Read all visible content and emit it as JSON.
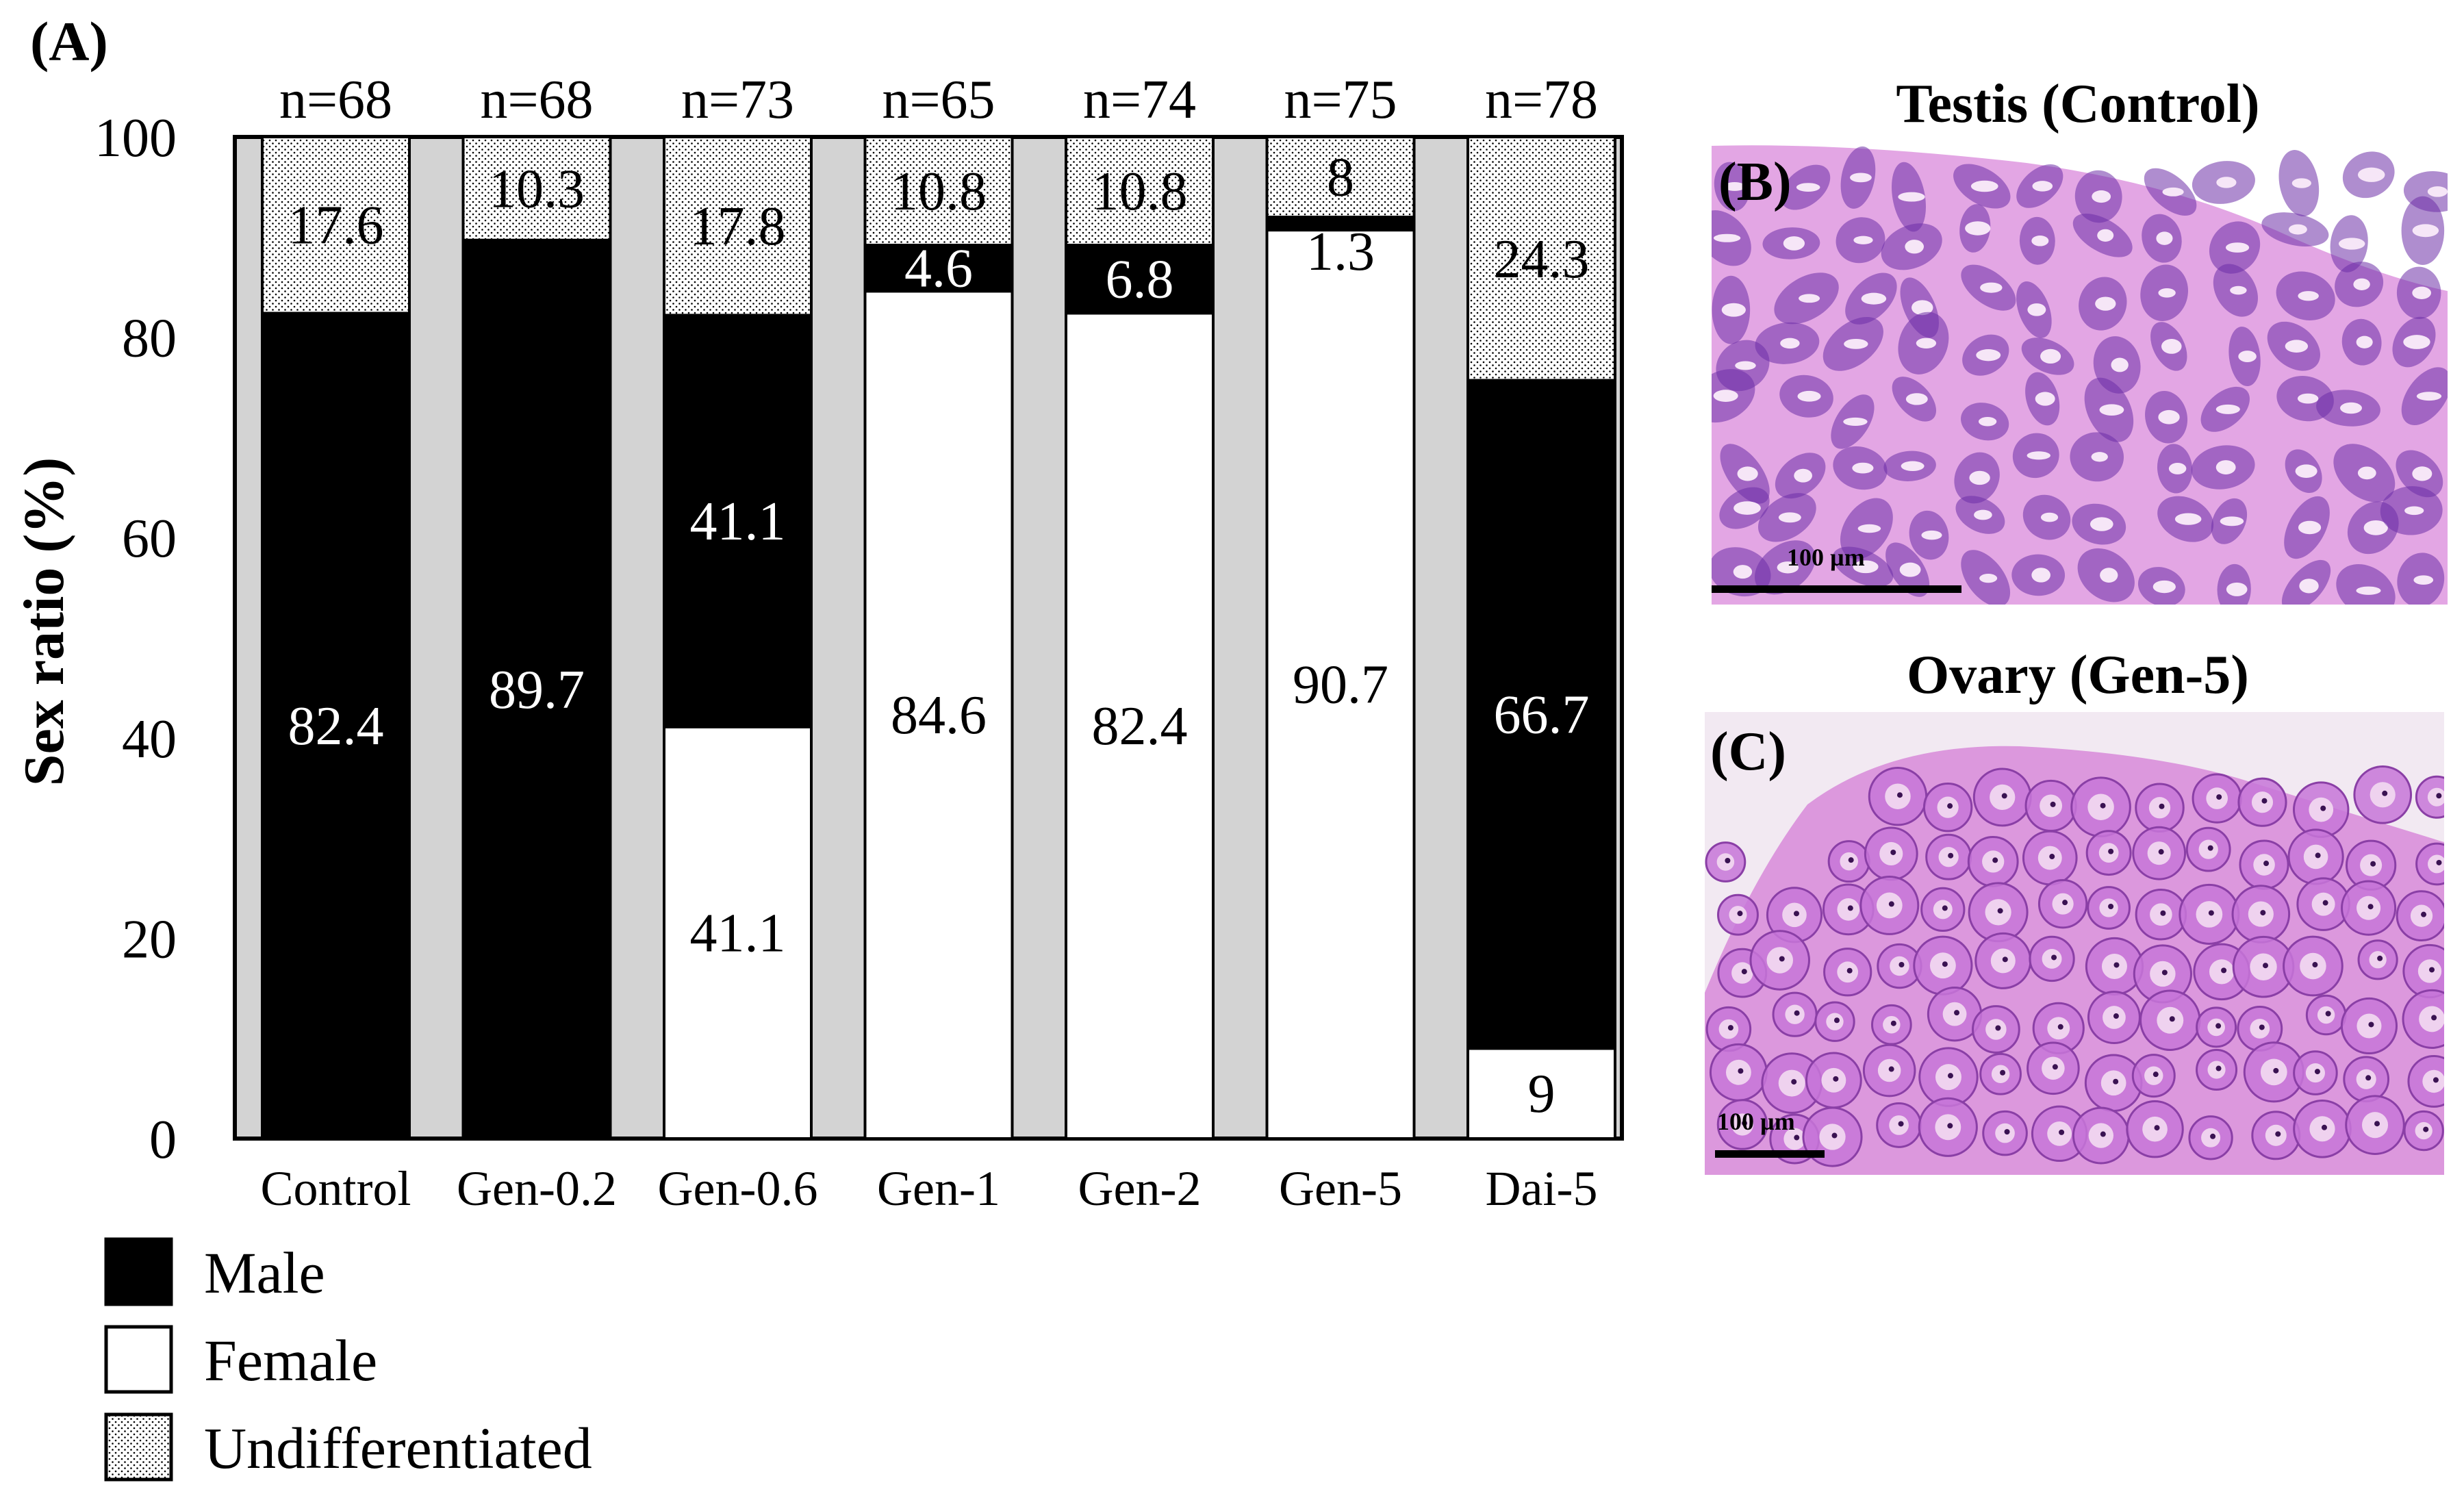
{
  "chart_data": {
    "type": "bar",
    "stacked": true,
    "panel_label": "(A)",
    "ylabel": "Sex ratio (%)",
    "ylim": [
      0,
      100
    ],
    "yticks": [
      "0",
      "20",
      "40",
      "60",
      "80",
      "100"
    ],
    "categories": [
      "Control",
      "Gen-0.2",
      "Gen-0.6",
      "Gen-1",
      "Gen-2",
      "Gen-5",
      "Dai-5"
    ],
    "sample_sizes": [
      "n=68",
      "n=68",
      "n=73",
      "n=65",
      "n=74",
      "n=75",
      "n=78"
    ],
    "series": [
      {
        "name": "Female",
        "key": "female",
        "values": [
          0,
          0,
          41.1,
          84.6,
          82.4,
          90.7,
          9
        ],
        "labels": [
          "",
          "",
          "41.1",
          "84.6",
          "82.4",
          "90.7",
          "9"
        ]
      },
      {
        "name": "Male",
        "key": "male",
        "values": [
          82.4,
          89.7,
          41.1,
          4.6,
          6.8,
          1.3,
          66.7
        ],
        "labels": [
          "82.4",
          "89.7",
          "41.1",
          "4.6",
          "6.8",
          "1.3",
          "66.7"
        ]
      },
      {
        "name": "Undifferentiated",
        "key": "undiff",
        "values": [
          17.6,
          10.3,
          17.8,
          10.8,
          10.8,
          8,
          24.3
        ],
        "labels": [
          "17.6",
          "10.3",
          "17.8",
          "10.8",
          "10.8",
          "8",
          "24.3"
        ]
      }
    ],
    "legend": [
      "Male",
      "Female",
      "Undifferentiated"
    ],
    "legend_position": "bottom-left"
  },
  "colors": {
    "male": "#000000",
    "female": "#ffffff",
    "undiff": "#ffffff",
    "plot_background": "#d3d3d3",
    "tissue_pink": "#e7aee8",
    "tissue_purple": "#6e2fa8",
    "ovary_background": "#f2e9f2"
  },
  "micrographs": {
    "testis": {
      "title": "Testis (Control)",
      "panel_label": "(B)",
      "scale_text": "100 µm"
    },
    "ovary": {
      "title": "Ovary (Gen-5)",
      "panel_label": "(C)",
      "scale_text": "100 µm"
    }
  }
}
